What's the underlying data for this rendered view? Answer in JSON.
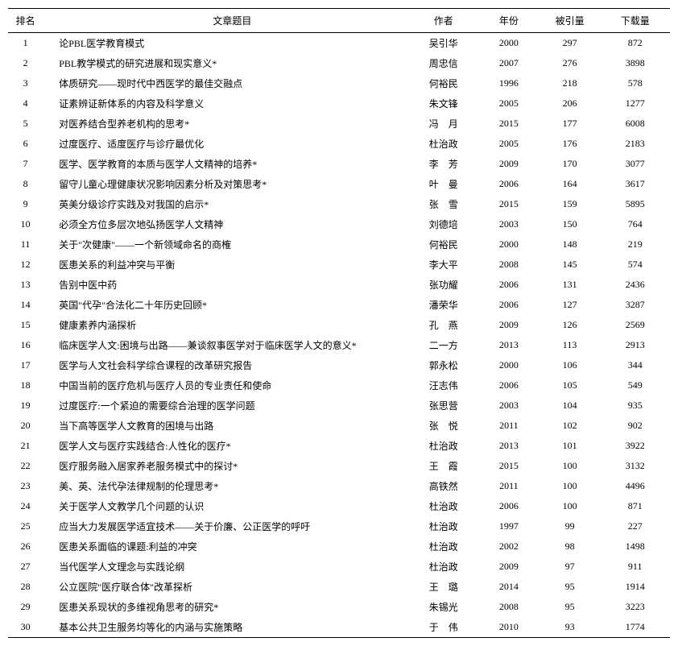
{
  "table": {
    "columns": [
      "排名",
      "文章题目",
      "作者",
      "年份",
      "被引量",
      "下载量"
    ],
    "rows": [
      {
        "rank": "1",
        "title": "论PBL医学教育模式",
        "author": "吴引华",
        "year": "2000",
        "cite": "297",
        "download": "872"
      },
      {
        "rank": "2",
        "title": "PBL教学模式的研究进展和现实意义*",
        "author": "周忠信",
        "year": "2007",
        "cite": "276",
        "download": "3898"
      },
      {
        "rank": "3",
        "title": "体质研究——现时代中西医学的最佳交融点",
        "author": "何裕民",
        "year": "1996",
        "cite": "218",
        "download": "578"
      },
      {
        "rank": "4",
        "title": "证素辨证新体系的内容及科学意义",
        "author": "朱文锋",
        "year": "2005",
        "cite": "206",
        "download": "1277"
      },
      {
        "rank": "5",
        "title": "对医养结合型养老机构的思考*",
        "author": "冯　月",
        "year": "2015",
        "cite": "177",
        "download": "6008"
      },
      {
        "rank": "6",
        "title": "过度医疗、适度医疗与诊疗最优化",
        "author": "杜治政",
        "year": "2005",
        "cite": "176",
        "download": "2183"
      },
      {
        "rank": "7",
        "title": "医学、医学教育的本质与医学人文精神的培养*",
        "author": "李　芳",
        "year": "2009",
        "cite": "170",
        "download": "3077"
      },
      {
        "rank": "8",
        "title": "留守儿童心理健康状况影响因素分析及对策思考*",
        "author": "叶　曼",
        "year": "2006",
        "cite": "164",
        "download": "3617"
      },
      {
        "rank": "9",
        "title": "英美分级诊疗实践及对我国的启示*",
        "author": "张　雪",
        "year": "2015",
        "cite": "159",
        "download": "5895"
      },
      {
        "rank": "10",
        "title": "必须全方位多层次地弘扬医学人文精神",
        "author": "刘德培",
        "year": "2003",
        "cite": "150",
        "download": "764"
      },
      {
        "rank": "11",
        "title": "关于\"次健康\"——一个新领域命名的商榷",
        "author": "何裕民",
        "year": "2000",
        "cite": "148",
        "download": "219"
      },
      {
        "rank": "12",
        "title": "医患关系的利益冲突与平衡",
        "author": "李大平",
        "year": "2008",
        "cite": "145",
        "download": "574"
      },
      {
        "rank": "13",
        "title": "告别中医中药",
        "author": "张功耀",
        "year": "2006",
        "cite": "131",
        "download": "2436"
      },
      {
        "rank": "14",
        "title": "英国\"代孕\"合法化二十年历史回顾*",
        "author": "潘荣华",
        "year": "2006",
        "cite": "127",
        "download": "3287"
      },
      {
        "rank": "15",
        "title": "健康素养内涵探析",
        "author": "孔　燕",
        "year": "2009",
        "cite": "126",
        "download": "2569"
      },
      {
        "rank": "16",
        "title": "临床医学人文:困境与出路——兼谈叙事医学对于临床医学人文的意义*",
        "author": "二一方",
        "year": "2013",
        "cite": "113",
        "download": "2913"
      },
      {
        "rank": "17",
        "title": "医学与人文社会科学综合课程的改革研究报告",
        "author": "郭永松",
        "year": "2000",
        "cite": "106",
        "download": "344"
      },
      {
        "rank": "18",
        "title": "中国当前的医疗危机与医疗人员的专业责任和使命",
        "author": "汪志伟",
        "year": "2006",
        "cite": "105",
        "download": "549"
      },
      {
        "rank": "19",
        "title": "过度医疗:一个紧迫的需要综合治理的医学问题",
        "author": "张思营",
        "year": "2003",
        "cite": "104",
        "download": "935"
      },
      {
        "rank": "20",
        "title": "当下高等医学人文教育的困境与出路",
        "author": "张　悦",
        "year": "2011",
        "cite": "102",
        "download": "902"
      },
      {
        "rank": "21",
        "title": "医学人文与医疗实践结合:人性化的医疗*",
        "author": "杜治政",
        "year": "2013",
        "cite": "101",
        "download": "3922"
      },
      {
        "rank": "22",
        "title": "医疗服务融入居家养老服务模式中的探讨*",
        "author": "王　霞",
        "year": "2015",
        "cite": "100",
        "download": "3132"
      },
      {
        "rank": "23",
        "title": "美、英、法代孕法律规制的伦理思考*",
        "author": "高铁然",
        "year": "2011",
        "cite": "100",
        "download": "4496"
      },
      {
        "rank": "24",
        "title": "关于医学人文教学几个问题的认识",
        "author": "杜治政",
        "year": "2006",
        "cite": "100",
        "download": "871"
      },
      {
        "rank": "25",
        "title": "应当大力发展医学适宜技术——关于价廉、公正医学的呼吁",
        "author": "杜治政",
        "year": "1997",
        "cite": "99",
        "download": "227"
      },
      {
        "rank": "26",
        "title": "医患关系面临的课题:利益的冲突",
        "author": "杜治政",
        "year": "2002",
        "cite": "98",
        "download": "1498"
      },
      {
        "rank": "27",
        "title": "当代医学人文理念与实践论纲",
        "author": "杜治政",
        "year": "2009",
        "cite": "97",
        "download": "911"
      },
      {
        "rank": "28",
        "title": "公立医院\"医疗联合体\"改革探析",
        "author": "王　璐",
        "year": "2014",
        "cite": "95",
        "download": "1914"
      },
      {
        "rank": "29",
        "title": "医患关系现状的多维视角思考的研究*",
        "author": "朱锡光",
        "year": "2008",
        "cite": "95",
        "download": "3223"
      },
      {
        "rank": "30",
        "title": "基本公共卫生服务均等化的内涵与实施策略",
        "author": "于　伟",
        "year": "2010",
        "cite": "93",
        "download": "1774"
      }
    ],
    "styling": {
      "background_color": "#ffffff",
      "border_color": "#000000",
      "font_size": 12,
      "font_family": "SimSun",
      "row_padding": 4,
      "header_padding": 6
    }
  }
}
